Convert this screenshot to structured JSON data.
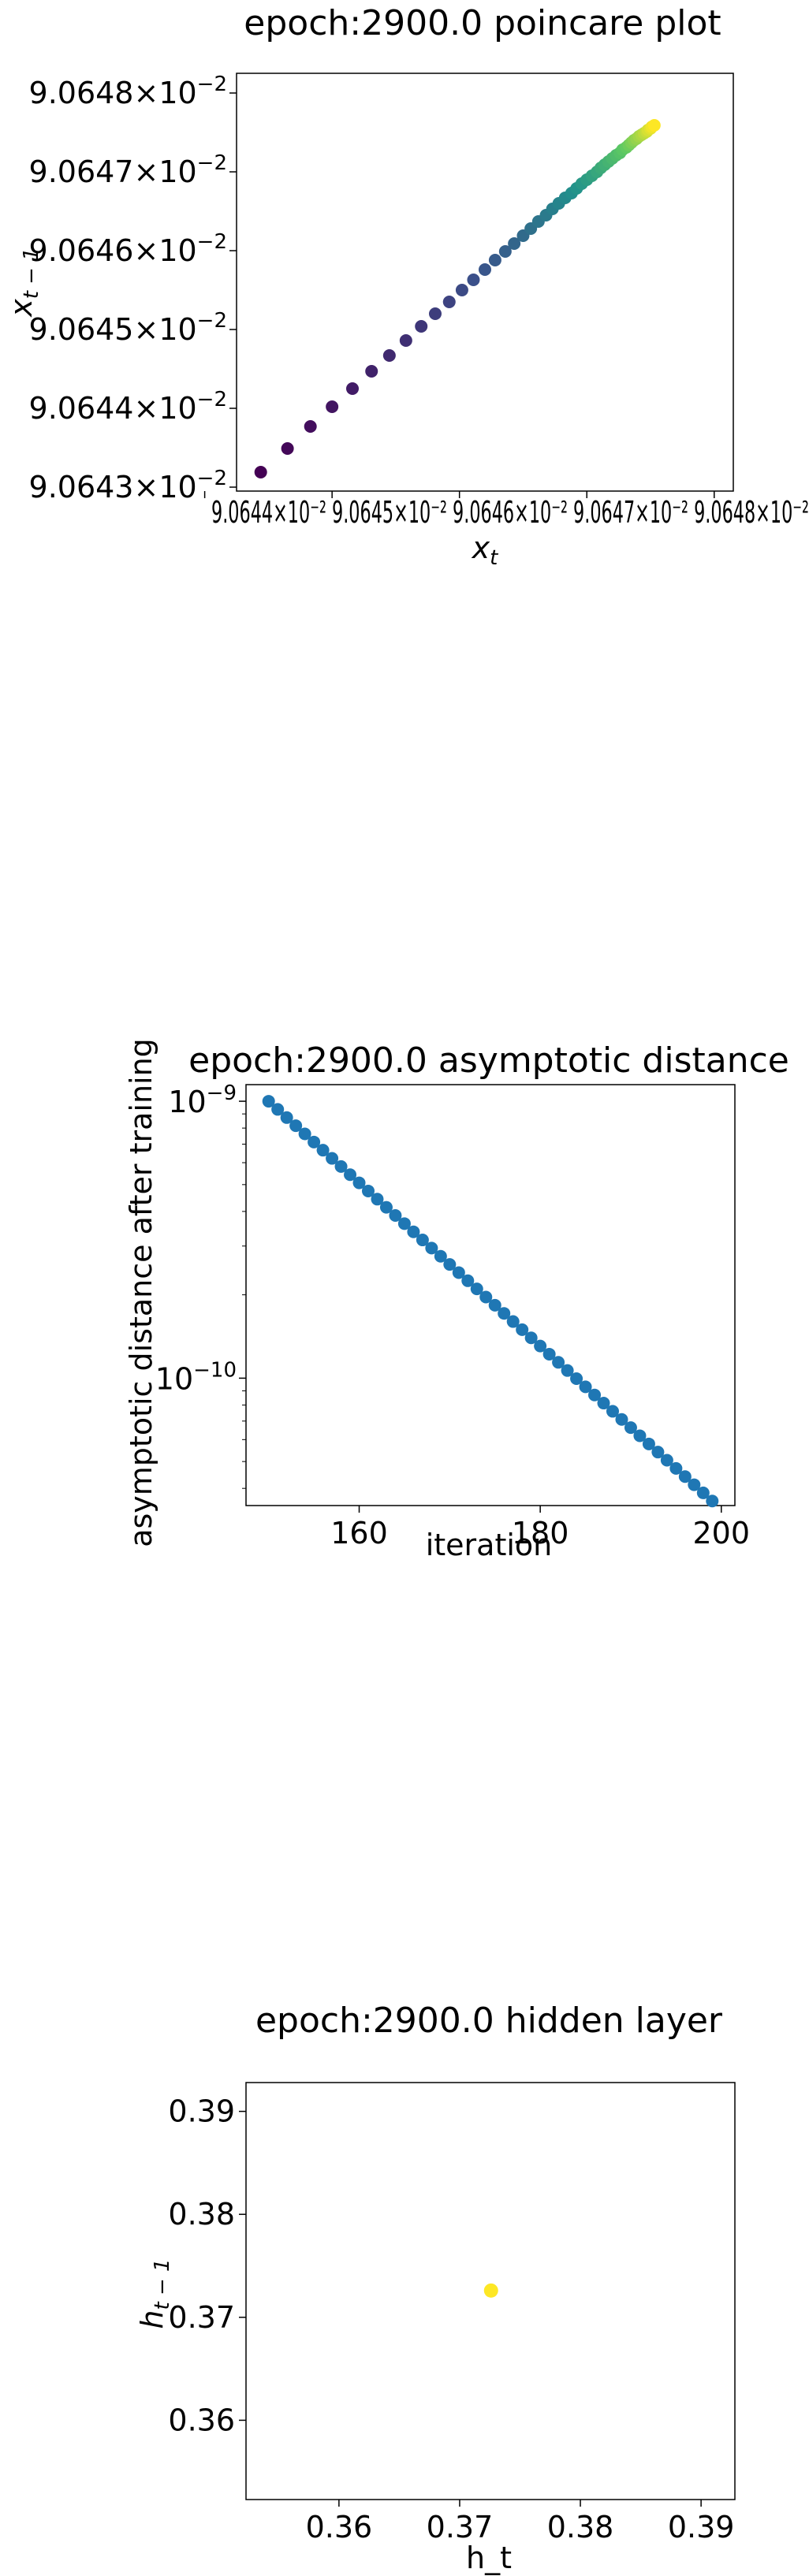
{
  "chart_data": [
    {
      "type": "scatter",
      "title": "epoch:2900.0 poincare plot",
      "xlabel": "x_t",
      "ylabel": "x_{t-1}",
      "colormap": "viridis",
      "xlim": [
        9.064425,
        9.064815
      ],
      "ylim": [
        9.064295,
        9.064825
      ],
      "x_ticks": [
        9.0644,
        9.0645,
        9.0646,
        9.0647,
        9.0648
      ],
      "x_tick_text": "9.0644×10⁻² 9.0645×10⁻² 9.0646×10⁻² 9.0647×10⁻² 9.0648×10⁻²",
      "y_ticks": [
        9.0643,
        9.0644,
        9.0645,
        9.0646,
        9.0647,
        9.0648
      ],
      "y_tick_labels": [
        "9.0643",
        "9.0644",
        "9.0645",
        "9.0646",
        "9.0647",
        "9.0648"
      ],
      "tick_multiplier": "×10",
      "tick_exponent": "−2",
      "series": [
        {
          "x": [
            9.064444,
            9.064465,
            9.064483,
            9.0645,
            9.064516,
            9.064531,
            9.064545,
            9.064558,
            9.06457,
            9.064581,
            9.064592,
            9.064602,
            9.064611,
            9.06462,
            9.064628,
            9.064636,
            9.064643,
            9.06465,
            9.064656,
            9.064662,
            9.064668,
            9.064673,
            9.064678,
            9.064683,
            9.064688,
            9.064692,
            9.064696,
            9.0647,
            9.064704,
            9.064708,
            9.064711,
            9.064714,
            9.064717,
            9.06472,
            9.064723,
            9.064726,
            9.064728,
            9.064731,
            9.064733,
            9.064735,
            9.064737,
            9.064739,
            9.064741,
            9.064743,
            9.064745,
            9.064747,
            9.064748,
            9.06475,
            9.064751,
            9.064753
          ],
          "y": [
            9.064319,
            9.064349,
            9.064377,
            9.064402,
            9.064425,
            9.064447,
            9.064467,
            9.064486,
            9.064504,
            9.06452,
            9.064535,
            9.06455,
            9.064563,
            9.064576,
            9.064588,
            9.064599,
            9.064609,
            9.064619,
            9.064628,
            9.064637,
            9.064645,
            9.064653,
            9.06466,
            9.064667,
            9.064673,
            9.064679,
            9.064685,
            9.06469,
            9.064695,
            9.0647,
            9.064705,
            9.064709,
            9.064713,
            9.064717,
            9.064721,
            9.064724,
            9.064728,
            9.064731,
            9.064734,
            9.064737,
            9.06474,
            9.064742,
            9.064745,
            9.064747,
            9.064749,
            9.064751,
            9.064753,
            9.064755,
            9.064757,
            9.064759
          ]
        }
      ]
    },
    {
      "type": "scatter",
      "title": "epoch:2900.0 asymptotic distance",
      "xlabel": "iteration",
      "ylabel": "asymptotic distance after training",
      "xlim": [
        147.5,
        201.5
      ],
      "ylim_log10": [
        -10.46,
        -8.94
      ],
      "y_scale": "log",
      "x_ticks": [
        160,
        180,
        200
      ],
      "y_ticks_log10": [
        -10,
        -9
      ],
      "y_tick_base": "10",
      "y_tick_exponents": [
        "−10",
        "−9"
      ],
      "color": "#1f77b4",
      "series": [
        {
          "x_start": 150,
          "x_end": 199,
          "y_start": 1e-09,
          "y_end": 3.6e-11
        }
      ]
    },
    {
      "type": "scatter",
      "title": "epoch:2900.0 hidden layer",
      "xlabel": "h_t",
      "ylabel": "h_{t-1}",
      "xlim": [
        0.3523,
        0.3928
      ],
      "ylim": [
        0.3523,
        0.3928
      ],
      "x_ticks": [
        0.36,
        0.37,
        0.38,
        0.39
      ],
      "y_ticks": [
        0.36,
        0.37,
        0.38,
        0.39
      ],
      "tick_labels": [
        "0.36",
        "0.37",
        "0.38",
        "0.39"
      ],
      "series": [
        {
          "x": [
            0.3726
          ],
          "y": [
            0.3726
          ],
          "color": "#fde725"
        }
      ]
    }
  ]
}
